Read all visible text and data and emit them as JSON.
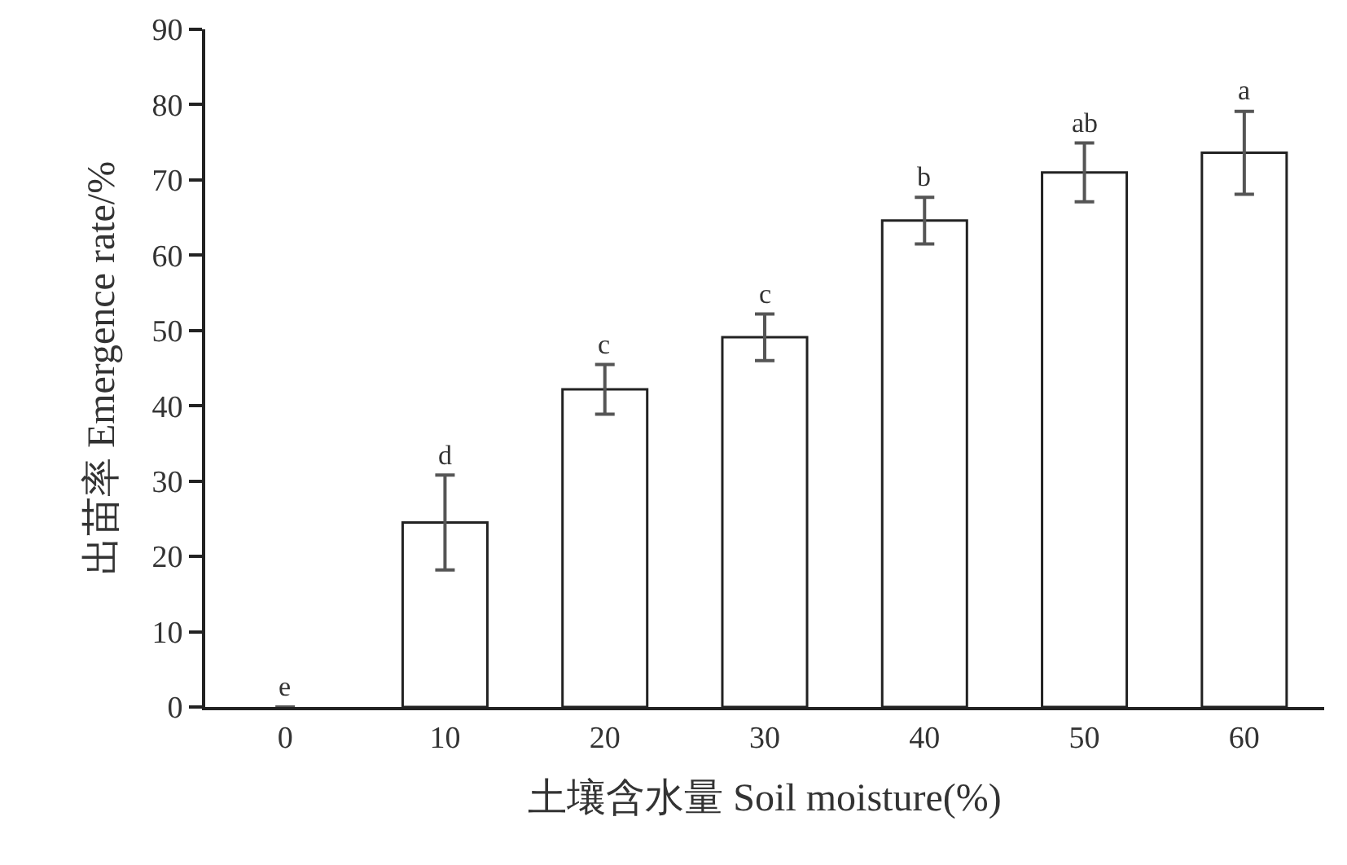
{
  "chart_data": {
    "type": "bar",
    "xlabel": "土壤含水量 Soil moisture(%)",
    "ylabel": "出苗率 Emergence rate/%",
    "categories": [
      "0",
      "10",
      "20",
      "30",
      "40",
      "50",
      "60"
    ],
    "values": [
      0,
      24.5,
      42.2,
      49.1,
      64.6,
      71.0,
      73.6
    ],
    "errors": [
      null,
      6.3,
      3.3,
      3.1,
      3.1,
      3.9,
      5.5
    ],
    "color": "#ffffff",
    "ylim": [
      0,
      90
    ],
    "yticks": [
      0,
      10,
      20,
      30,
      40,
      50,
      60,
      70,
      80,
      90
    ],
    "grid": false,
    "annotations": [
      {
        "text": "e",
        "x": "0",
        "y": 0
      },
      {
        "text": "d",
        "x": "10",
        "y": 30.8
      },
      {
        "text": "c",
        "x": "20",
        "y": 45.5
      },
      {
        "text": "c",
        "x": "30",
        "y": 52.2
      },
      {
        "text": "b",
        "x": "40",
        "y": 67.7
      },
      {
        "text": "ab",
        "x": "50",
        "y": 74.9
      },
      {
        "text": "a",
        "x": "60",
        "y": 79.1
      }
    ]
  }
}
